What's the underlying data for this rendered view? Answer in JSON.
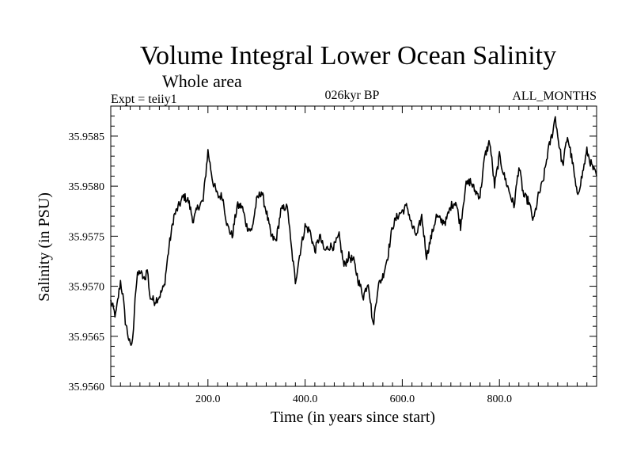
{
  "chart_data": {
    "type": "line",
    "title": "Volume Integral Lower Ocean Salinity",
    "subtitle": "Whole area",
    "experiment": "Expt = teiiy1",
    "period": "026kyr BP",
    "months": "ALL_MONTHS",
    "xlabel": "Time (in years since start)",
    "ylabel": "Salinity (in PSU)",
    "xlim": [
      0,
      1000
    ],
    "ylim": [
      35.956,
      35.9588
    ],
    "xticks": [
      200,
      400,
      600,
      800
    ],
    "xtick_labels": [
      "200.0",
      "400.0",
      "600.0",
      "800.0"
    ],
    "yticks": [
      35.956,
      35.9565,
      35.957,
      35.9575,
      35.958,
      35.9585
    ],
    "ytick_labels": [
      "35.9560",
      "35.9565",
      "35.9570",
      "35.9575",
      "35.9580",
      "35.9585"
    ],
    "grid": false,
    "series": [
      {
        "x": [
          0,
          10,
          20,
          25,
          30,
          40,
          45,
          50,
          55,
          60,
          70,
          75,
          80,
          90,
          100,
          110,
          120,
          130,
          140,
          150,
          160,
          170,
          180,
          190,
          200,
          210,
          220,
          230,
          240,
          250,
          260,
          270,
          280,
          290,
          300,
          310,
          320,
          330,
          340,
          350,
          360,
          365,
          370,
          380,
          390,
          400,
          410,
          420,
          430,
          440,
          450,
          460,
          470,
          480,
          490,
          500,
          510,
          520,
          530,
          540,
          550,
          560,
          570,
          580,
          590,
          600,
          610,
          620,
          630,
          640,
          650,
          660,
          670,
          680,
          690,
          700,
          710,
          720,
          730,
          740,
          750,
          760,
          770,
          780,
          790,
          800,
          810,
          820,
          830,
          840,
          850,
          860,
          870,
          880,
          890,
          900,
          910,
          915,
          920,
          930,
          940,
          950,
          960,
          970,
          980,
          990,
          1000
        ],
        "y": [
          35.95685,
          35.9567,
          35.95705,
          35.9569,
          35.95665,
          35.9564,
          35.95645,
          35.9569,
          35.9571,
          35.95715,
          35.95705,
          35.9572,
          35.9569,
          35.95685,
          35.9569,
          35.957,
          35.9574,
          35.9577,
          35.9578,
          35.9579,
          35.95785,
          35.95765,
          35.9578,
          35.95785,
          35.95835,
          35.95805,
          35.9579,
          35.9579,
          35.9576,
          35.9575,
          35.9578,
          35.9578,
          35.9576,
          35.95755,
          35.95785,
          35.95795,
          35.95775,
          35.9575,
          35.95745,
          35.95775,
          35.9578,
          35.95775,
          35.95745,
          35.95705,
          35.95735,
          35.9576,
          35.95755,
          35.95735,
          35.9575,
          35.95735,
          35.9574,
          35.9574,
          35.9575,
          35.9572,
          35.9573,
          35.95725,
          35.95705,
          35.9569,
          35.95705,
          35.9566,
          35.957,
          35.9571,
          35.9573,
          35.9576,
          35.9577,
          35.95775,
          35.9578,
          35.9576,
          35.9575,
          35.9577,
          35.9573,
          35.9575,
          35.9577,
          35.95765,
          35.95765,
          35.9578,
          35.95785,
          35.9576,
          35.958,
          35.95805,
          35.95795,
          35.9579,
          35.9583,
          35.95845,
          35.958,
          35.9583,
          35.9581,
          35.95795,
          35.9578,
          35.9582,
          35.9579,
          35.95785,
          35.95765,
          35.9579,
          35.95805,
          35.95835,
          35.95855,
          35.9587,
          35.9585,
          35.9582,
          35.9585,
          35.95825,
          35.9579,
          35.9581,
          35.95835,
          35.9582,
          35.9581
        ]
      }
    ]
  }
}
